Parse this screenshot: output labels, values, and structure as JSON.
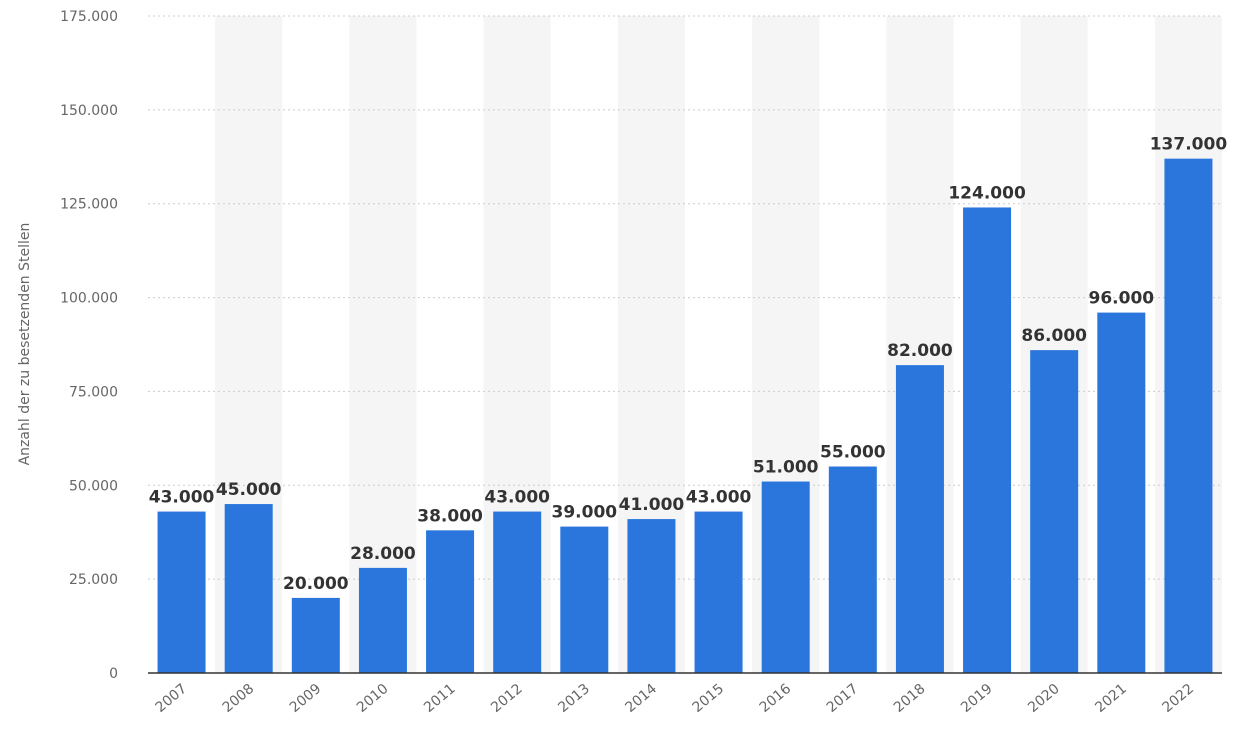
{
  "chart_data": {
    "type": "bar",
    "title": "",
    "xlabel": "",
    "ylabel": "Anzahl der zu besetzenden Stellen",
    "categories": [
      "2007",
      "2008",
      "2009",
      "2010",
      "2011",
      "2012",
      "2013",
      "2014",
      "2015",
      "2016",
      "2017",
      "2018",
      "2019",
      "2020",
      "2021",
      "2022"
    ],
    "values": [
      43000,
      45000,
      20000,
      28000,
      38000,
      43000,
      39000,
      41000,
      43000,
      51000,
      55000,
      82000,
      124000,
      86000,
      96000,
      137000
    ],
    "data_labels": [
      "43.000",
      "45.000",
      "20.000",
      "28.000",
      "38.000",
      "43.000",
      "39.000",
      "41.000",
      "43.000",
      "51.000",
      "55.000",
      "82.000",
      "124.000",
      "86.000",
      "96.000",
      "137.000"
    ],
    "ylim": [
      0,
      175000
    ],
    "yticks": [
      0,
      25000,
      50000,
      75000,
      100000,
      125000,
      150000,
      175000
    ],
    "ytick_labels": [
      "0",
      "25.000",
      "50.000",
      "75.000",
      "100.000",
      "125.000",
      "150.000",
      "175.000"
    ],
    "grid": true,
    "bar_color": "#2a76dc",
    "band_color": "#f5f5f5",
    "grid_color": "#cccccc",
    "axis_color": "#333333"
  }
}
